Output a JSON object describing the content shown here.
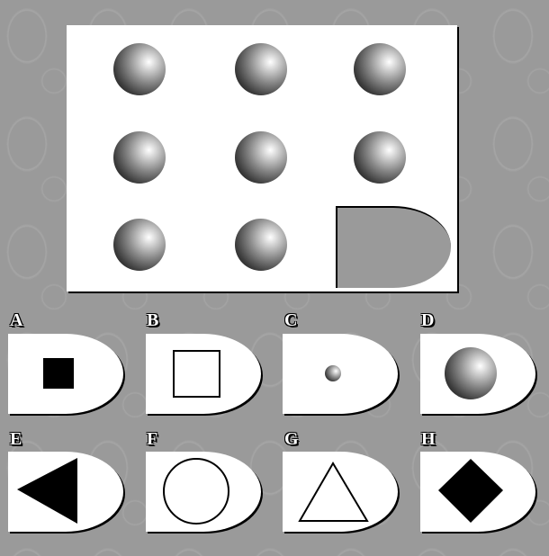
{
  "puzzle": {
    "grid": [
      [
        "sphere",
        "sphere",
        "sphere"
      ],
      [
        "sphere",
        "sphere",
        "sphere"
      ],
      [
        "sphere",
        "sphere",
        "missing"
      ]
    ]
  },
  "options": [
    {
      "letter": "A",
      "shape": "filled-square"
    },
    {
      "letter": "B",
      "shape": "outline-square"
    },
    {
      "letter": "C",
      "shape": "small-sphere"
    },
    {
      "letter": "D",
      "shape": "sphere"
    },
    {
      "letter": "E",
      "shape": "filled-triangle-left"
    },
    {
      "letter": "F",
      "shape": "outline-circle"
    },
    {
      "letter": "G",
      "shape": "outline-triangle-up"
    },
    {
      "letter": "H",
      "shape": "filled-diamond"
    }
  ]
}
